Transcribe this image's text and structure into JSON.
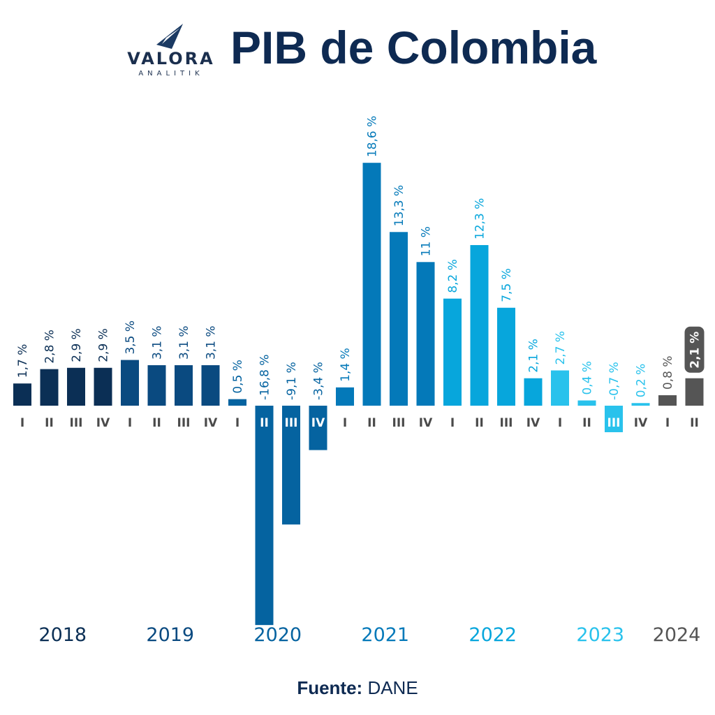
{
  "header": {
    "logo_main": "VALORA",
    "logo_sub": "ANALITIK",
    "title": "PIB de Colombia"
  },
  "footer": {
    "source_label": "Fuente:",
    "source_value": "DANE"
  },
  "colors": {
    "2018": "#0b2f55",
    "2019": "#0a4a80",
    "2020": "#0563a0",
    "2021": "#0479b9",
    "2022": "#07a6dc",
    "2023": "#29c2ec",
    "2024": "#555555",
    "highlight_bg": "#555555",
    "highlight_text": "#ffffff",
    "quarter_text": "#4a4a4a"
  },
  "chart_data": {
    "type": "bar",
    "title": "PIB de Colombia",
    "xlabel": "",
    "ylabel": "",
    "grid": false,
    "legend": "none",
    "years": [
      "2018",
      "2019",
      "2020",
      "2021",
      "2022",
      "2023",
      "2024"
    ],
    "categories": [
      "I",
      "II",
      "III",
      "IV",
      "I",
      "II",
      "III",
      "IV",
      "I",
      "II",
      "III",
      "IV",
      "I",
      "II",
      "III",
      "IV",
      "I",
      "II",
      "III",
      "IV",
      "I",
      "II",
      "III",
      "IV",
      "I",
      "II"
    ],
    "category_years": [
      "2018",
      "2018",
      "2018",
      "2018",
      "2019",
      "2019",
      "2019",
      "2019",
      "2020",
      "2020",
      "2020",
      "2020",
      "2021",
      "2021",
      "2021",
      "2021",
      "2022",
      "2022",
      "2022",
      "2022",
      "2023",
      "2023",
      "2023",
      "2023",
      "2024",
      "2024"
    ],
    "values": [
      1.7,
      2.8,
      2.9,
      2.9,
      3.5,
      3.1,
      3.1,
      3.1,
      0.5,
      -16.8,
      -9.1,
      -3.4,
      1.4,
      18.6,
      13.3,
      11,
      8.2,
      12.3,
      7.5,
      2.1,
      2.7,
      0.4,
      -0.7,
      0.2,
      0.8,
      2.1
    ],
    "data_labels": [
      "1,7 %",
      "2,8 %",
      "2,9 %",
      "2,9 %",
      "3,5 %",
      "3,1 %",
      "3,1 %",
      "3,1 %",
      "0,5 %",
      "-16,8 %",
      "-9,1 %",
      "-3,4 %",
      "1,4 %",
      "18,6 %",
      "13,3 %",
      "11 %",
      "8,2 %",
      "12,3 %",
      "7,5 %",
      "2,1 %",
      "2,7 %",
      "0,4 %",
      "-0,7 %",
      "0,2 %",
      "0,8 %",
      "2,1 %"
    ],
    "highlight_index": 25,
    "ylim": [
      -17,
      19
    ]
  }
}
